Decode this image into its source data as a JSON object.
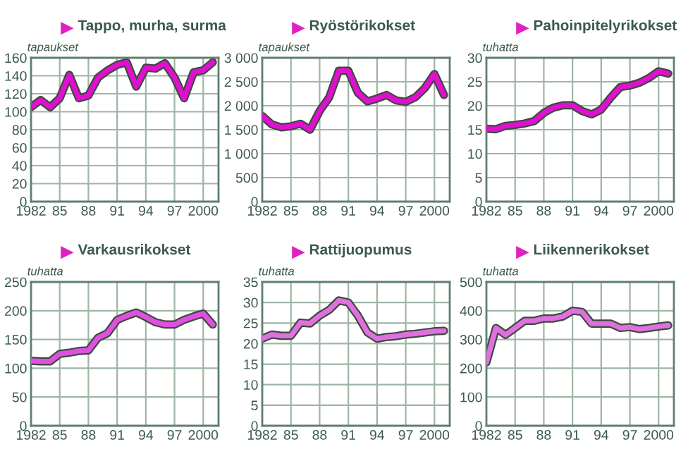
{
  "chart_data": [
    {
      "type": "line",
      "title": "Tappo, murha, surma",
      "ylabel": "tapaukset",
      "x": [
        1982,
        1983,
        1984,
        1985,
        1986,
        1987,
        1988,
        1989,
        1990,
        1991,
        1992,
        1993,
        1994,
        1995,
        1996,
        1997,
        1998,
        1999,
        2000,
        2001
      ],
      "series": [
        {
          "color": "#e010d0",
          "values": [
            105,
            113,
            105,
            115,
            141,
            115,
            118,
            138,
            146,
            152,
            155,
            128,
            149,
            148,
            154,
            138,
            115,
            144,
            146,
            155
          ]
        }
      ],
      "xlim": [
        1982,
        2001.6
      ],
      "xticks": [
        1982,
        {
          "value": 1985,
          "label": "85"
        },
        {
          "value": 1988,
          "label": "88"
        },
        {
          "value": 1991,
          "label": "91"
        },
        {
          "value": 1994,
          "label": "94"
        },
        {
          "value": 1997,
          "label": "97"
        },
        2000
      ],
      "ylim": [
        0,
        160
      ],
      "yticks": [
        0,
        20,
        40,
        60,
        80,
        100,
        120,
        140,
        160
      ],
      "grid": true
    },
    {
      "type": "line",
      "title": "Ryöstörikokset",
      "ylabel": "tapaukset",
      "x": [
        1982,
        1983,
        1984,
        1985,
        1986,
        1987,
        1988,
        1989,
        1990,
        1991,
        1992,
        1993,
        1994,
        1995,
        1996,
        1997,
        1998,
        1999,
        2000,
        2001
      ],
      "series": [
        {
          "color": "#e010d0",
          "values": [
            1790,
            1610,
            1550,
            1570,
            1625,
            1500,
            1890,
            2175,
            2730,
            2730,
            2270,
            2090,
            2150,
            2225,
            2110,
            2080,
            2175,
            2370,
            2660,
            2225
          ]
        }
      ],
      "xlim": [
        1982,
        2001.6
      ],
      "xticks": [
        1982,
        {
          "value": 1985,
          "label": "85"
        },
        {
          "value": 1988,
          "label": "88"
        },
        {
          "value": 1991,
          "label": "91"
        },
        {
          "value": 1994,
          "label": "94"
        },
        {
          "value": 1997,
          "label": "97"
        },
        2000
      ],
      "ylim": [
        0,
        3000
      ],
      "yticks": [
        0,
        500,
        {
          "value": 1000,
          "label": "1 000"
        },
        {
          "value": 1500,
          "label": "1 500"
        },
        {
          "value": 2000,
          "label": "2 000"
        },
        {
          "value": 2500,
          "label": "2 500"
        },
        {
          "value": 3000,
          "label": "3 000"
        }
      ],
      "grid": true
    },
    {
      "type": "line",
      "title": "Pahoinpitelyrikokset",
      "ylabel": "tuhatta",
      "x": [
        1982,
        1983,
        1984,
        1985,
        1986,
        1987,
        1988,
        1989,
        1990,
        1991,
        1992,
        1993,
        1994,
        1995,
        1996,
        1997,
        1998,
        1999,
        2000,
        2001
      ],
      "series": [
        {
          "color": "#e010d0",
          "values": [
            15.2,
            15.1,
            15.8,
            16.0,
            16.3,
            16.8,
            18.5,
            19.6,
            20.1,
            20.1,
            18.9,
            18.2,
            19.2,
            21.7,
            23.9,
            24.2,
            24.8,
            25.8,
            27.2,
            26.7
          ]
        }
      ],
      "xlim": [
        1982,
        2001.6
      ],
      "xticks": [
        1982,
        {
          "value": 1985,
          "label": "85"
        },
        {
          "value": 1988,
          "label": "88"
        },
        {
          "value": 1991,
          "label": "91"
        },
        {
          "value": 1994,
          "label": "94"
        },
        {
          "value": 1997,
          "label": "97"
        },
        2000
      ],
      "ylim": [
        0,
        30
      ],
      "yticks": [
        0,
        5,
        10,
        15,
        20,
        25,
        30
      ],
      "grid": true
    },
    {
      "type": "line",
      "title": "Varkausrikokset",
      "ylabel": "tuhatta",
      "x": [
        1982,
        1983,
        1984,
        1985,
        1986,
        1987,
        1988,
        1989,
        1990,
        1991,
        1992,
        1993,
        1994,
        1995,
        1996,
        1997,
        1998,
        1999,
        2000,
        2001
      ],
      "series": [
        {
          "color": "#e050e0",
          "values": [
            113,
            112,
            112,
            125,
            127,
            130,
            131,
            153,
            161,
            184,
            191,
            197,
            189,
            180,
            176,
            176,
            184,
            190,
            195,
            176
          ]
        }
      ],
      "xlim": [
        1982,
        2001.6
      ],
      "xticks": [
        1982,
        {
          "value": 1985,
          "label": "85"
        },
        {
          "value": 1988,
          "label": "88"
        },
        {
          "value": 1991,
          "label": "91"
        },
        {
          "value": 1994,
          "label": "94"
        },
        {
          "value": 1997,
          "label": "97"
        },
        2000
      ],
      "ylim": [
        0,
        250
      ],
      "yticks": [
        0,
        50,
        100,
        150,
        200,
        250
      ],
      "grid": true
    },
    {
      "type": "line",
      "title": "Rattijuopumus",
      "ylabel": "tuhatta",
      "x": [
        1982,
        1983,
        1984,
        1985,
        1986,
        1987,
        1988,
        1989,
        1990,
        1991,
        1992,
        1993,
        1994,
        1995,
        1996,
        1997,
        1998,
        1999,
        2000,
        2001
      ],
      "series": [
        {
          "color": "#e070e0",
          "values": [
            21.2,
            22.2,
            21.9,
            21.9,
            25.1,
            24.9,
            26.8,
            28.2,
            30.5,
            30.0,
            26.8,
            22.7,
            21.2,
            21.6,
            21.8,
            22.2,
            22.4,
            22.7,
            23.0,
            23.1
          ]
        }
      ],
      "xlim": [
        1982,
        2001.6
      ],
      "xticks": [
        1982,
        {
          "value": 1985,
          "label": "85"
        },
        {
          "value": 1988,
          "label": "88"
        },
        {
          "value": 1991,
          "label": "91"
        },
        {
          "value": 1994,
          "label": "94"
        },
        {
          "value": 1997,
          "label": "97"
        },
        2000
      ],
      "ylim": [
        0,
        35
      ],
      "yticks": [
        0,
        5,
        10,
        15,
        20,
        25,
        30,
        35
      ],
      "grid": true
    },
    {
      "type": "line",
      "title": "Liikennerikokset",
      "ylabel": "tuhatta",
      "x": [
        1982,
        1983,
        1984,
        1985,
        1986,
        1987,
        1988,
        1989,
        1990,
        1991,
        1992,
        1993,
        1994,
        1995,
        1996,
        1997,
        1998,
        1999,
        2000,
        2001
      ],
      "series": [
        {
          "color": "#e070e0",
          "values": [
            220,
            340,
            316,
            340,
            365,
            365,
            373,
            373,
            380,
            400,
            396,
            355,
            355,
            355,
            340,
            343,
            336,
            340,
            345,
            349
          ]
        }
      ],
      "xlim": [
        1982,
        2001.6
      ],
      "xticks": [
        1982,
        {
          "value": 1985,
          "label": "85"
        },
        {
          "value": 1988,
          "label": "88"
        },
        {
          "value": 1991,
          "label": "91"
        },
        {
          "value": 1994,
          "label": "94"
        },
        {
          "value": 1997,
          "label": "97"
        },
        2000
      ],
      "ylim": [
        0,
        500
      ],
      "yticks": [
        0,
        100,
        200,
        300,
        400,
        500
      ],
      "grid": true
    }
  ]
}
